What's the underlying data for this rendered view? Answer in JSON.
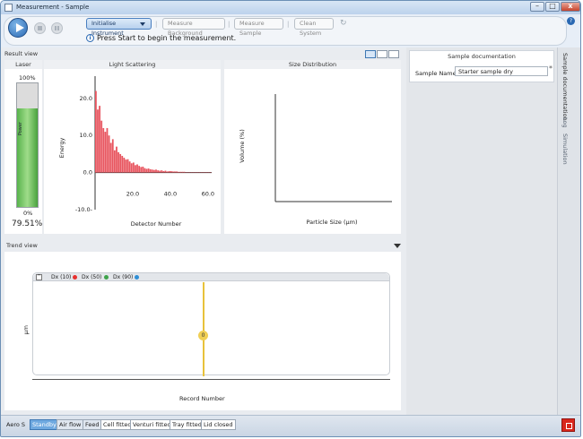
{
  "window": {
    "title": "Measurement - Sample",
    "min_label": "–",
    "max_label": "□",
    "close_label": "x"
  },
  "toolbar": {
    "steps": [
      "Initialise Instrument",
      "Measure Background",
      "Measure Sample",
      "Clean System"
    ],
    "status_message": "Press Start to begin the measurement.",
    "info_glyph": "i",
    "refresh_glyph": "↻",
    "help_glyph": "?"
  },
  "result_view": {
    "label": "Result view",
    "laser": {
      "title": "Laser",
      "top_label": "100%",
      "bottom_label": "0%",
      "axis_label": "Power",
      "value_text": "79.51%",
      "power_fraction": 0.7951
    },
    "light_scattering": {
      "title": "Light Scattering"
    },
    "size_distribution": {
      "title": "Size Distribution"
    }
  },
  "trend_view": {
    "label": "Trend view",
    "expander_glyph": "^",
    "legend": [
      {
        "name": "Dx (10)",
        "color": "#e8312f"
      },
      {
        "name": "Dx (50)",
        "color": "#3ea34a"
      },
      {
        "name": "Dx (90)",
        "color": "#2f8fd6"
      }
    ],
    "y_label": "µm",
    "x_label": "Record Number",
    "marker_value": "0"
  },
  "sample_documentation": {
    "title": "Sample documentation",
    "field_label": "Sample Name",
    "field_value": "Starter sample dry",
    "required_mark": "*"
  },
  "side_tabs": [
    "Sample documentation",
    "Log",
    "Simulation"
  ],
  "statusbar": {
    "device": "Aero S",
    "items": [
      "Standby",
      "Air flow",
      "Feed",
      "Cell fitted",
      "Venturi fitted",
      "Tray fitted",
      "Lid closed"
    ]
  },
  "chart_data": [
    {
      "type": "bar",
      "title": "Light Scattering",
      "xlabel": "Detector Number",
      "ylabel": "Energy",
      "xlim": [
        0,
        62
      ],
      "ylim": [
        -10,
        26
      ],
      "x_ticks": [
        "20.0",
        "40.0",
        "60.0"
      ],
      "y_ticks": [
        "-10.0-",
        "0.0",
        "10.0",
        "20.0"
      ],
      "categories": [
        1,
        2,
        3,
        4,
        5,
        6,
        7,
        8,
        9,
        10,
        11,
        12,
        13,
        14,
        15,
        16,
        17,
        18,
        19,
        20,
        21,
        22,
        23,
        24,
        25,
        26,
        27,
        28,
        29,
        30,
        31,
        32,
        33,
        34,
        35,
        36,
        37,
        38,
        39,
        40,
        41,
        42,
        43,
        44,
        45,
        46,
        47,
        48,
        49,
        50,
        51,
        52,
        53,
        54,
        55,
        56,
        57,
        58,
        59,
        60,
        61,
        62
      ],
      "values": [
        22,
        17,
        18,
        14,
        12,
        11,
        12,
        10,
        8,
        9,
        6,
        7,
        5.5,
        5,
        4.5,
        4,
        3.5,
        3.6,
        3,
        2.5,
        2.7,
        2,
        2.2,
        1.8,
        1.5,
        1.6,
        1.2,
        1,
        1.1,
        0.9,
        0.8,
        0.7,
        0.8,
        0.6,
        0.5,
        0.6,
        0.4,
        0.5,
        0.3,
        0.4,
        0.4,
        0.3,
        0.3,
        0.3,
        0.2,
        0.2,
        0.2,
        0.2,
        0.1,
        0.1,
        0.1,
        0.1,
        0.1,
        0.1,
        0.1,
        0.1,
        0.1,
        0.1,
        0.1,
        0.1,
        0.1,
        0.1
      ],
      "color": "#e8555f"
    },
    {
      "type": "line",
      "title": "Size Distribution",
      "xlabel": "Particle Size (µm)",
      "ylabel": "Volume (%)",
      "series": []
    }
  ]
}
